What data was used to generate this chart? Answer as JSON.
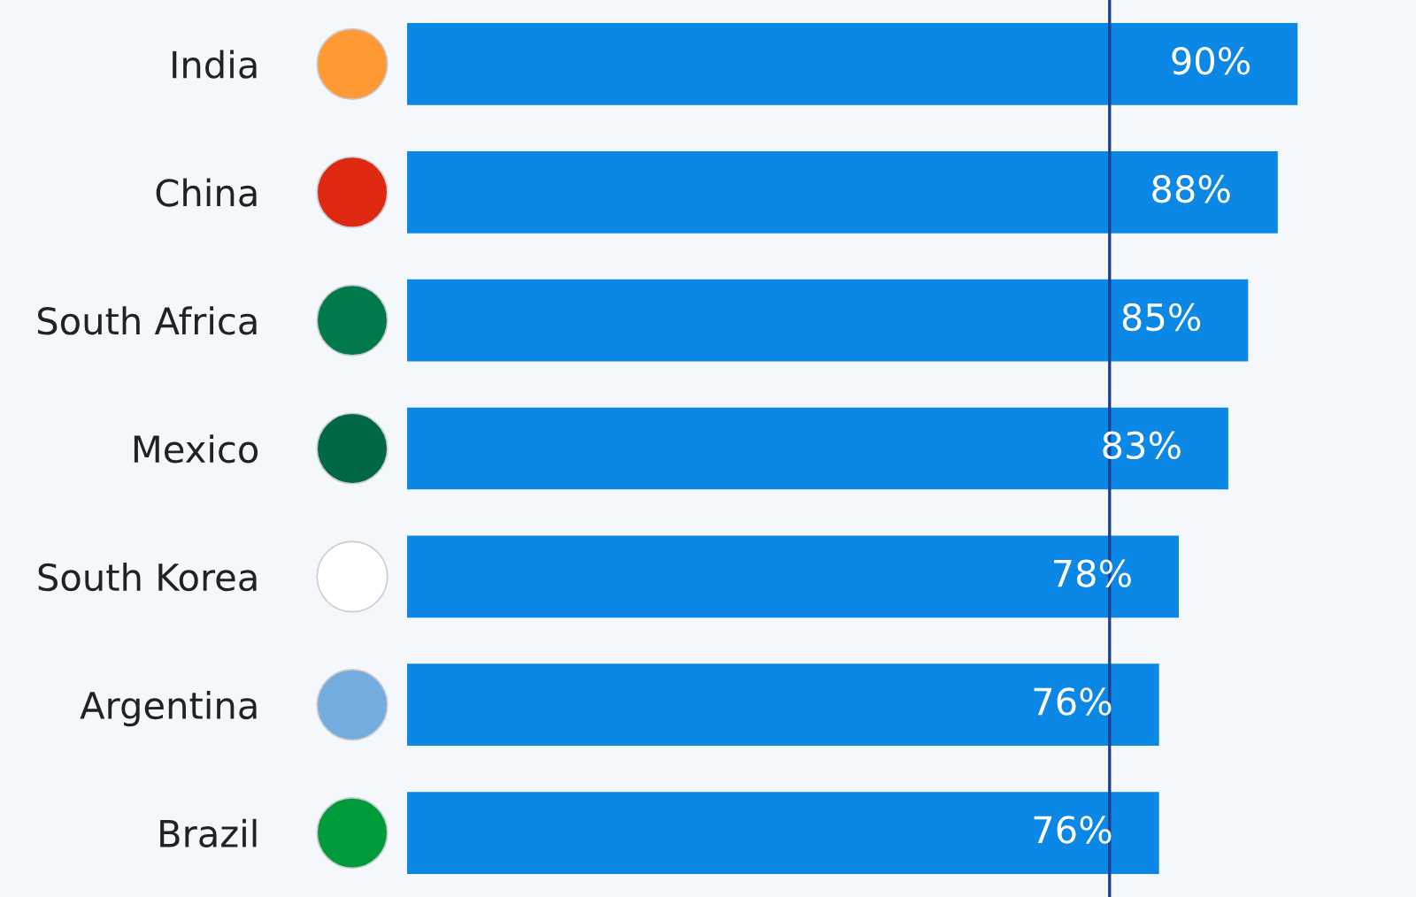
{
  "chart_data": {
    "type": "bar",
    "orientation": "horizontal",
    "categories": [
      "India",
      "China",
      "South Africa",
      "Mexico",
      "South Korea",
      "Argentina",
      "Brazil"
    ],
    "values": [
      90,
      88,
      85,
      83,
      78,
      76,
      76
    ],
    "color": "#0b87e6",
    "value_labels": [
      "90%",
      "88%",
      "85%",
      "83%",
      "78%",
      "76%",
      "76%"
    ],
    "ref_lines": [
      {
        "axis": "x",
        "value": 71,
        "color": "#1d3f8f"
      }
    ],
    "grid": false,
    "legend": false
  }
}
